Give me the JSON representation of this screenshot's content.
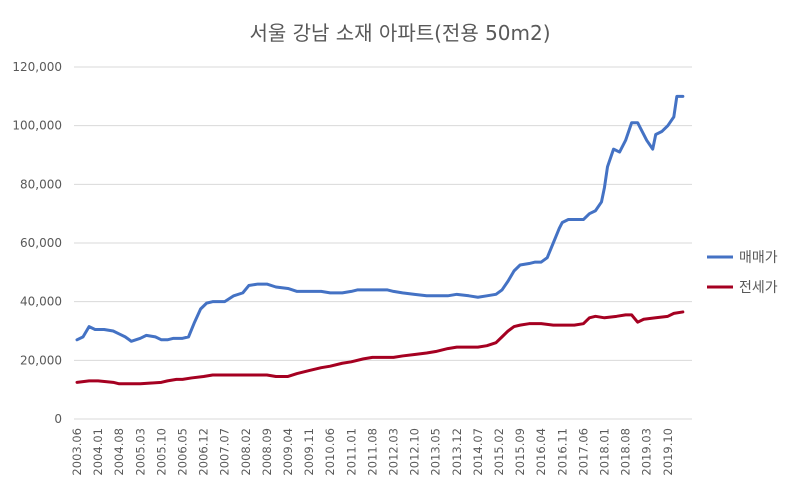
{
  "chart_data": {
    "type": "line",
    "title": "서울 강남 소재 아파트(전용 50m2)",
    "xlabel": "",
    "ylabel": "",
    "ylim": [
      0,
      120000
    ],
    "yticks": [
      "0",
      "20,000",
      "40,000",
      "60,000",
      "80,000",
      "100,000",
      "120,000"
    ],
    "xticks": [
      "2003.06",
      "2004.01",
      "2004.08",
      "2005.03",
      "2005.10",
      "2006.05",
      "2006.12",
      "2007.07",
      "2008.02",
      "2008.09",
      "2009.04",
      "2009.11",
      "2010.06",
      "2011.01",
      "2011.08",
      "2012.03",
      "2012.10",
      "2013.05",
      "2013.12",
      "2014.07",
      "2015.02",
      "2015.09",
      "2016.04",
      "2016.11",
      "2017.06",
      "2018.01",
      "2018.08",
      "2019.03",
      "2019.10"
    ],
    "grid": true,
    "legend": "right",
    "series": [
      {
        "name": "매매가",
        "color": "#4472C4",
        "points": [
          [
            "2003.06",
            27000
          ],
          [
            "2003.08",
            28000
          ],
          [
            "2003.10",
            31500
          ],
          [
            "2003.12",
            30500
          ],
          [
            "2004.03",
            30500
          ],
          [
            "2004.06",
            30000
          ],
          [
            "2004.08",
            29000
          ],
          [
            "2004.10",
            28000
          ],
          [
            "2004.12",
            26500
          ],
          [
            "2005.03",
            27500
          ],
          [
            "2005.05",
            28500
          ],
          [
            "2005.08",
            28000
          ],
          [
            "2005.10",
            27000
          ],
          [
            "2005.12",
            27000
          ],
          [
            "2006.02",
            27500
          ],
          [
            "2006.05",
            27500
          ],
          [
            "2006.07",
            28000
          ],
          [
            "2006.09",
            33000
          ],
          [
            "2006.11",
            37500
          ],
          [
            "2007.01",
            39500
          ],
          [
            "2007.03",
            40000
          ],
          [
            "2007.07",
            40000
          ],
          [
            "2007.10",
            42000
          ],
          [
            "2008.01",
            43000
          ],
          [
            "2008.03",
            45500
          ],
          [
            "2008.06",
            46000
          ],
          [
            "2008.09",
            46000
          ],
          [
            "2008.12",
            45000
          ],
          [
            "2009.04",
            44500
          ],
          [
            "2009.07",
            43500
          ],
          [
            "2009.11",
            43500
          ],
          [
            "2010.03",
            43500
          ],
          [
            "2010.06",
            43000
          ],
          [
            "2010.10",
            43000
          ],
          [
            "2011.01",
            43500
          ],
          [
            "2011.03",
            44000
          ],
          [
            "2011.08",
            44000
          ],
          [
            "2012.01",
            44000
          ],
          [
            "2012.03",
            43500
          ],
          [
            "2012.06",
            43000
          ],
          [
            "2012.10",
            42500
          ],
          [
            "2013.02",
            42000
          ],
          [
            "2013.05",
            42000
          ],
          [
            "2013.09",
            42000
          ],
          [
            "2013.12",
            42500
          ],
          [
            "2014.04",
            42000
          ],
          [
            "2014.07",
            41500
          ],
          [
            "2014.10",
            42000
          ],
          [
            "2015.01",
            42500
          ],
          [
            "2015.03",
            44000
          ],
          [
            "2015.05",
            47000
          ],
          [
            "2015.07",
            50500
          ],
          [
            "2015.09",
            52500
          ],
          [
            "2015.12",
            53000
          ],
          [
            "2016.02",
            53500
          ],
          [
            "2016.04",
            53500
          ],
          [
            "2016.06",
            55000
          ],
          [
            "2016.08",
            60000
          ],
          [
            "2016.10",
            65000
          ],
          [
            "2016.11",
            67000
          ],
          [
            "2017.01",
            68000
          ],
          [
            "2017.03",
            68000
          ],
          [
            "2017.06",
            68000
          ],
          [
            "2017.08",
            70000
          ],
          [
            "2017.10",
            71000
          ],
          [
            "2017.12",
            74000
          ],
          [
            "2018.01",
            79000
          ],
          [
            "2018.02",
            86000
          ],
          [
            "2018.04",
            92000
          ],
          [
            "2018.06",
            91000
          ],
          [
            "2018.08",
            95000
          ],
          [
            "2018.10",
            101000
          ],
          [
            "2018.12",
            101000
          ],
          [
            "2019.02",
            97000
          ],
          [
            "2019.03",
            95000
          ],
          [
            "2019.05",
            92000
          ],
          [
            "2019.06",
            97000
          ],
          [
            "2019.08",
            98000
          ],
          [
            "2019.10",
            100000
          ],
          [
            "2019.12",
            103000
          ],
          [
            "2020.01",
            110000
          ],
          [
            "2020.03",
            110000
          ]
        ]
      },
      {
        "name": "전세가",
        "color": "#A50021",
        "points": [
          [
            "2003.06",
            12500
          ],
          [
            "2003.10",
            13000
          ],
          [
            "2004.01",
            13000
          ],
          [
            "2004.06",
            12500
          ],
          [
            "2004.08",
            12000
          ],
          [
            "2004.12",
            12000
          ],
          [
            "2005.03",
            12000
          ],
          [
            "2005.10",
            12500
          ],
          [
            "2005.12",
            13000
          ],
          [
            "2006.03",
            13500
          ],
          [
            "2006.05",
            13500
          ],
          [
            "2006.08",
            14000
          ],
          [
            "2006.12",
            14500
          ],
          [
            "2007.03",
            15000
          ],
          [
            "2007.07",
            15000
          ],
          [
            "2007.12",
            15000
          ],
          [
            "2008.03",
            15000
          ],
          [
            "2008.09",
            15000
          ],
          [
            "2008.12",
            14500
          ],
          [
            "2009.04",
            14500
          ],
          [
            "2009.07",
            15500
          ],
          [
            "2009.11",
            16500
          ],
          [
            "2010.03",
            17500
          ],
          [
            "2010.06",
            18000
          ],
          [
            "2010.10",
            19000
          ],
          [
            "2011.01",
            19500
          ],
          [
            "2011.05",
            20500
          ],
          [
            "2011.08",
            21000
          ],
          [
            "2012.01",
            21000
          ],
          [
            "2012.03",
            21000
          ],
          [
            "2012.06",
            21500
          ],
          [
            "2012.10",
            22000
          ],
          [
            "2013.02",
            22500
          ],
          [
            "2013.05",
            23000
          ],
          [
            "2013.09",
            24000
          ],
          [
            "2013.12",
            24500
          ],
          [
            "2014.04",
            24500
          ],
          [
            "2014.07",
            24500
          ],
          [
            "2014.10",
            25000
          ],
          [
            "2015.01",
            26000
          ],
          [
            "2015.03",
            28000
          ],
          [
            "2015.05",
            30000
          ],
          [
            "2015.07",
            31500
          ],
          [
            "2015.09",
            32000
          ],
          [
            "2015.12",
            32500
          ],
          [
            "2016.04",
            32500
          ],
          [
            "2016.08",
            32000
          ],
          [
            "2016.11",
            32000
          ],
          [
            "2017.03",
            32000
          ],
          [
            "2017.06",
            32500
          ],
          [
            "2017.08",
            34500
          ],
          [
            "2017.10",
            35000
          ],
          [
            "2018.01",
            34500
          ],
          [
            "2018.05",
            35000
          ],
          [
            "2018.08",
            35500
          ],
          [
            "2018.10",
            35500
          ],
          [
            "2018.12",
            33000
          ],
          [
            "2019.02",
            34000
          ],
          [
            "2019.06",
            34500
          ],
          [
            "2019.10",
            35000
          ],
          [
            "2019.12",
            36000
          ],
          [
            "2020.03",
            36500
          ]
        ]
      }
    ]
  }
}
